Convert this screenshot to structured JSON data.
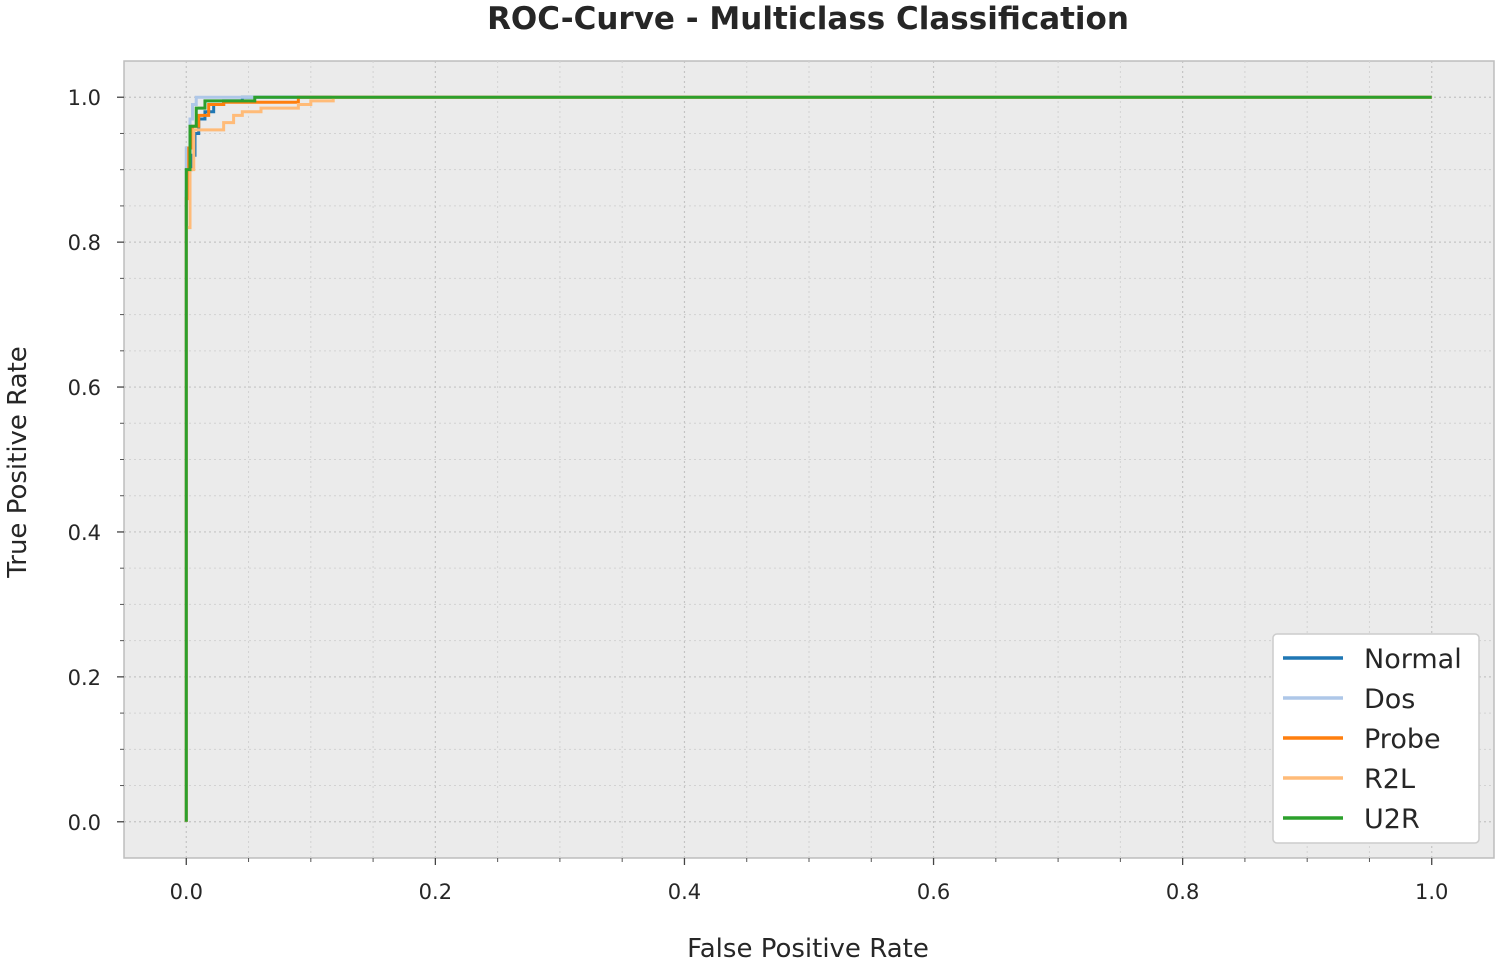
{
  "chart_data": {
    "type": "line",
    "title": "ROC-Curve - Multiclass Classification",
    "xlabel": "False Positive Rate",
    "ylabel": "True Positive Rate",
    "xlim": [
      -0.05,
      1.05
    ],
    "ylim": [
      -0.05,
      1.05
    ],
    "xticks": [
      0.0,
      0.2,
      0.4,
      0.6,
      0.8,
      1.0
    ],
    "xtick_labels": [
      "0.0",
      "0.2",
      "0.4",
      "0.6",
      "0.8",
      "1.0"
    ],
    "yticks": [
      0.0,
      0.2,
      0.4,
      0.6,
      0.8,
      1.0
    ],
    "ytick_labels": [
      "0.0",
      "0.2",
      "0.4",
      "0.6",
      "0.8",
      "1.0"
    ],
    "grid": true,
    "legend_position": "lower-right",
    "series": [
      {
        "name": "Normal",
        "color": "#1f77b4",
        "x": [
          0.0,
          0.0,
          0.002,
          0.002,
          0.004,
          0.004,
          0.007,
          0.007,
          0.01,
          0.01,
          0.015,
          0.015,
          0.022,
          0.022,
          0.03,
          0.03,
          0.045,
          0.045,
          1.0
        ],
        "y": [
          0.0,
          0.87,
          0.87,
          0.9,
          0.9,
          0.92,
          0.92,
          0.95,
          0.95,
          0.97,
          0.97,
          0.98,
          0.98,
          0.99,
          0.99,
          0.995,
          0.995,
          1.0,
          1.0
        ]
      },
      {
        "name": "Dos",
        "color": "#aec7e8",
        "x": [
          0.0,
          0.0,
          0.003,
          0.003,
          0.005,
          0.005,
          0.008,
          0.008,
          0.055,
          0.055,
          1.0
        ],
        "y": [
          0.0,
          0.93,
          0.93,
          0.97,
          0.97,
          0.99,
          0.99,
          1.0,
          1.0,
          1.0,
          1.0
        ]
      },
      {
        "name": "Probe",
        "color": "#ff7f0e",
        "x": [
          0.0,
          0.0,
          0.002,
          0.002,
          0.005,
          0.005,
          0.01,
          0.01,
          0.018,
          0.018,
          0.03,
          0.03,
          0.09,
          0.09,
          1.0
        ],
        "y": [
          0.0,
          0.86,
          0.86,
          0.93,
          0.93,
          0.96,
          0.96,
          0.975,
          0.975,
          0.99,
          0.99,
          0.993,
          0.993,
          1.0,
          1.0
        ]
      },
      {
        "name": "R2L",
        "color": "#ffbb78",
        "x": [
          0.0,
          0.0,
          0.003,
          0.003,
          0.006,
          0.006,
          0.015,
          0.015,
          0.03,
          0.03,
          0.038,
          0.038,
          0.045,
          0.045,
          0.06,
          0.06,
          0.09,
          0.09,
          0.1,
          0.1,
          0.118,
          0.118,
          1.0
        ],
        "y": [
          0.0,
          0.82,
          0.82,
          0.9,
          0.9,
          0.955,
          0.955,
          0.955,
          0.955,
          0.965,
          0.965,
          0.975,
          0.975,
          0.98,
          0.98,
          0.985,
          0.985,
          0.99,
          0.99,
          0.995,
          0.995,
          1.0,
          1.0
        ]
      },
      {
        "name": "U2R",
        "color": "#2ca02c",
        "x": [
          0.0,
          0.0,
          0.003,
          0.003,
          0.008,
          0.008,
          0.015,
          0.015,
          0.055,
          0.055,
          1.0
        ],
        "y": [
          0.0,
          0.9,
          0.9,
          0.96,
          0.96,
          0.985,
          0.985,
          0.995,
          0.995,
          1.0,
          1.0
        ]
      }
    ]
  }
}
